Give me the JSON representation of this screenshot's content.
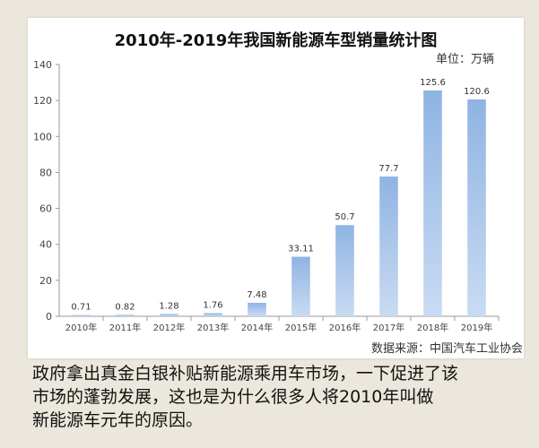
{
  "chart_data": {
    "type": "bar",
    "title": "2010年-2019年我国新能源车型销量统计图",
    "unit": "单位：万辆",
    "categories": [
      "2010年",
      "2011年",
      "2012年",
      "2013年",
      "2014年",
      "2015年",
      "2016年",
      "2017年",
      "2018年",
      "2019年"
    ],
    "values": [
      0.71,
      0.82,
      1.28,
      1.76,
      7.48,
      33.11,
      50.7,
      77.7,
      125.6,
      120.6
    ],
    "value_labels": [
      "0.71",
      "0.82",
      "1.28",
      "1.76",
      "7.48",
      "33.11",
      "50.7",
      "77.7",
      "125.6",
      "120.6"
    ],
    "ylim": [
      0,
      140
    ],
    "yticks": [
      0,
      20,
      40,
      60,
      80,
      100,
      120,
      140
    ],
    "grid": false,
    "legend": "none",
    "bar_color_top": "#8fb4e3",
    "bar_color_bottom": "#c9dbf2"
  },
  "source": "数据来源：中国汽车工业协会",
  "caption": {
    "line1": "政府拿出真金白银补贴新能源乘用车市场，一下促进了该",
    "line2": "市场的蓬勃发展，这也是为什么很多人将2010年叫做",
    "line3": "新能源车元年的原因。"
  }
}
